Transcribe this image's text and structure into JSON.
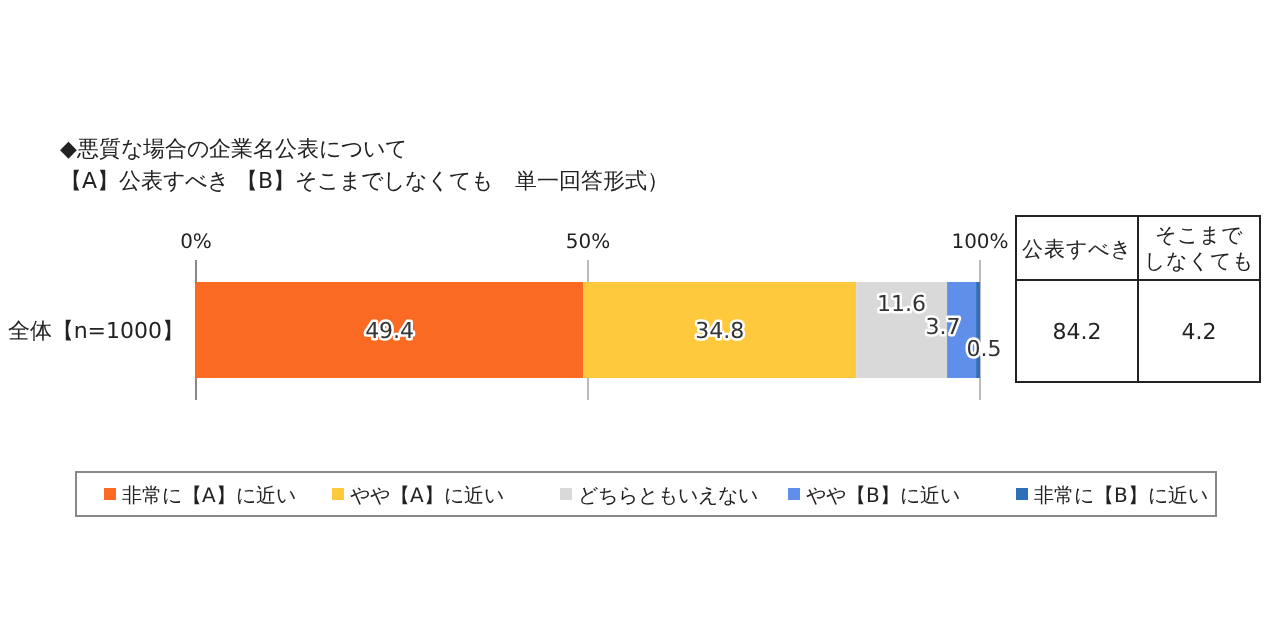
{
  "chart_data": {
    "type": "bar",
    "orientation": "horizontal",
    "stacked": true,
    "title": "◆悪質な場合の企業名公表について",
    "subtitle": "【A】公表すべき 【B】そこまでしなくても　単一回答形式）",
    "categories": [
      "全体【n=1000】"
    ],
    "series": [
      {
        "name": "非常に【A】に近い",
        "color": "#fb6a22",
        "values": [
          49.4
        ]
      },
      {
        "name": "やや【A】に近い",
        "color": "#fec93c",
        "values": [
          34.8
        ]
      },
      {
        "name": "どちらともいえない",
        "color": "#d9d9d9",
        "values": [
          11.6
        ]
      },
      {
        "name": "やや【B】に近い",
        "color": "#5f8fe8",
        "values": [
          3.7
        ]
      },
      {
        "name": "非常に【B】に近い",
        "color": "#2f6fb8",
        "values": [
          0.5
        ]
      }
    ],
    "xlim": [
      0,
      100
    ],
    "xticks": [
      {
        "value": 0,
        "label": "0%"
      },
      {
        "value": 50,
        "label": "50%"
      },
      {
        "value": 100,
        "label": "100%"
      }
    ],
    "grid": "x",
    "data_labels": true,
    "legend": "bottom",
    "annotations": [
      "公表すべき",
      "そこまでしなくても",
      "84.2",
      "4.2"
    ]
  }
}
